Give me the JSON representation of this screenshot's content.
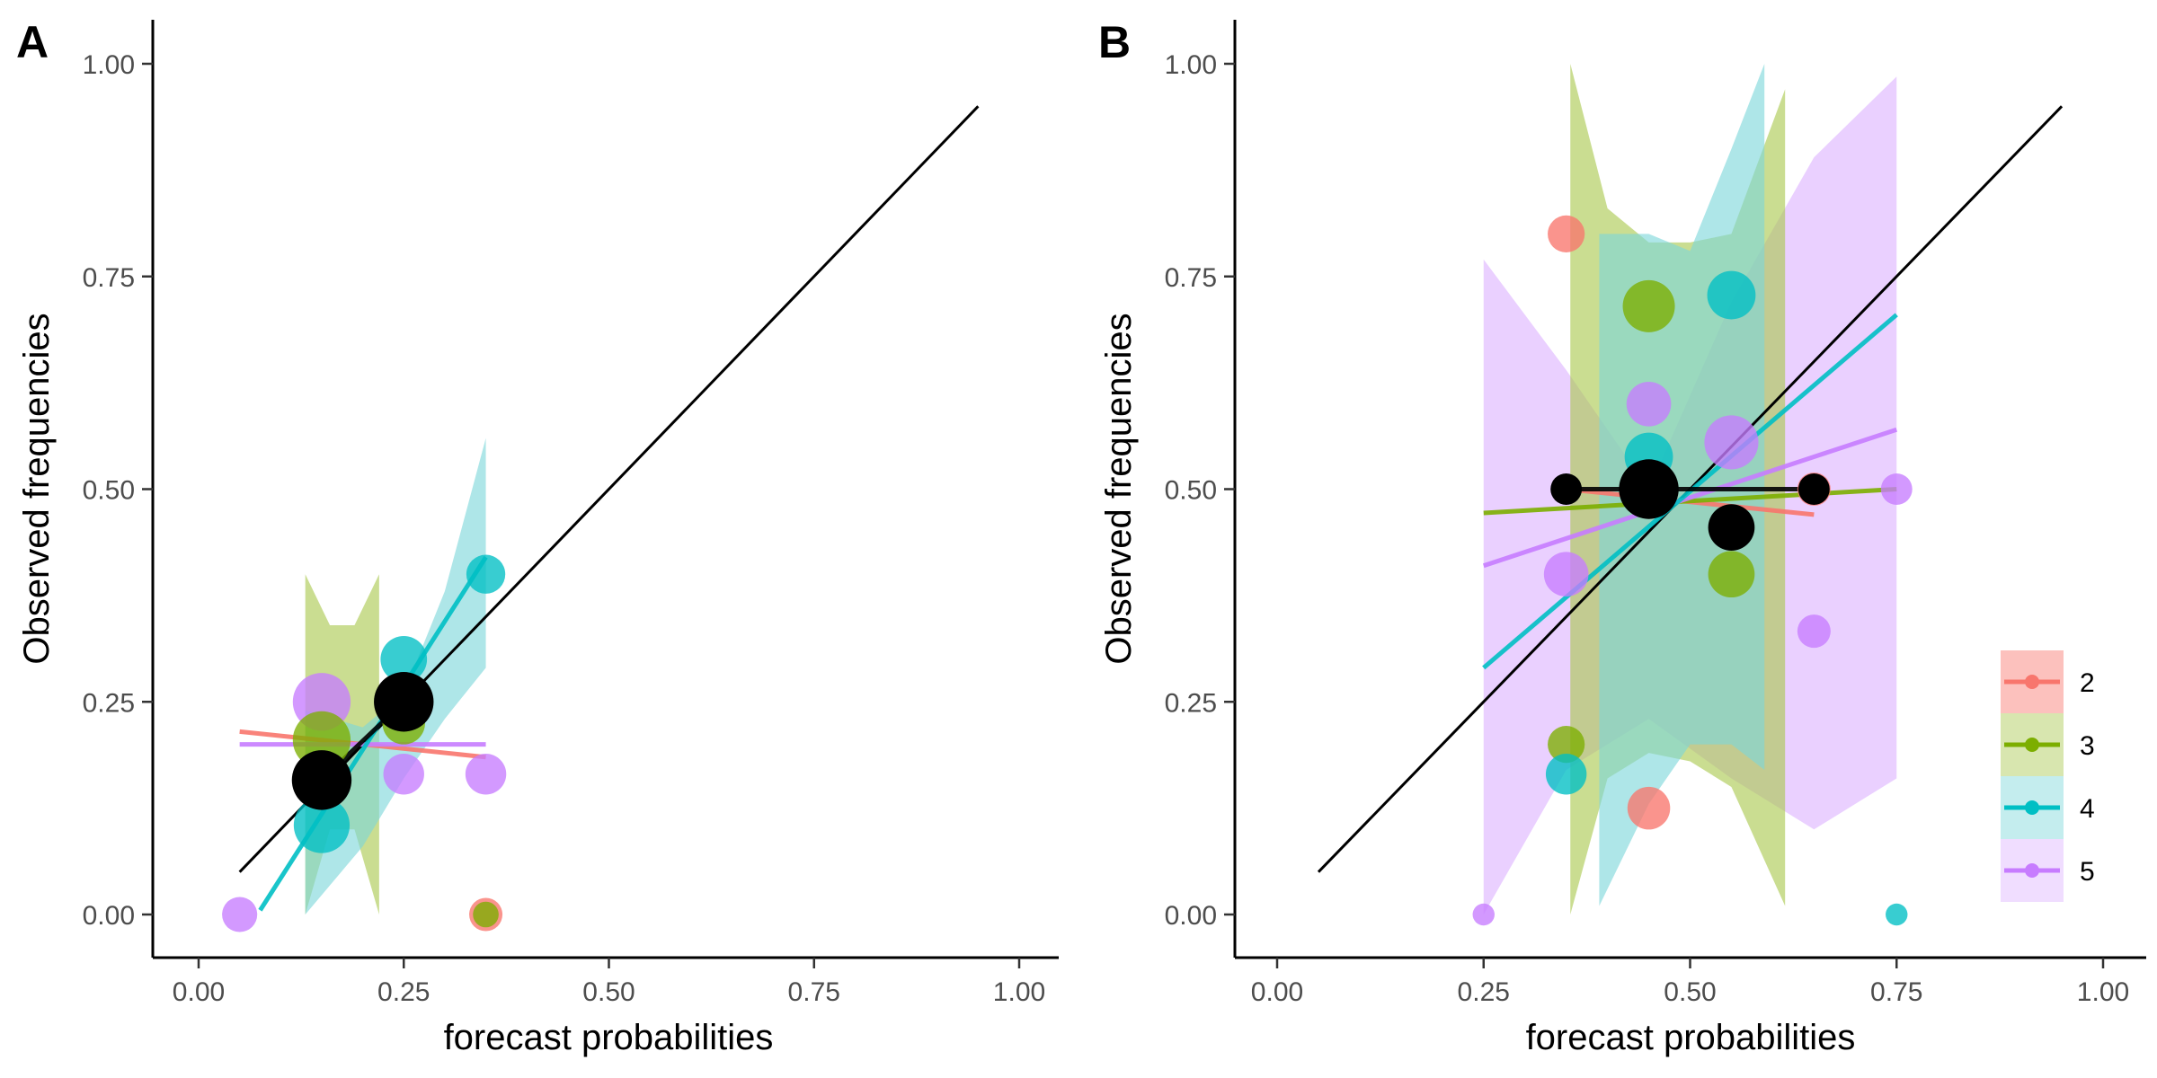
{
  "colors": {
    "2": "#F8766D",
    "3": "#7CAE00",
    "4": "#00BFC4",
    "5": "#C77CFF",
    "overall": "#000000",
    "band3": "#A9C84E",
    "band4": "#7CD6DA",
    "band5": "#DDB3FF"
  },
  "legend": {
    "placement": "bottom-right",
    "entries": [
      {
        "key": "2",
        "label": "2"
      },
      {
        "key": "3",
        "label": "3"
      },
      {
        "key": "4",
        "label": "4"
      },
      {
        "key": "5",
        "label": "5"
      }
    ]
  },
  "chart_data": [
    {
      "type": "scatter",
      "panel_tag": "A",
      "xlabel": "forecast probabilities",
      "ylabel": "Observed frequencies",
      "xlim": [
        0,
        1
      ],
      "ylim": [
        0,
        1
      ],
      "xticks": [
        "0.00",
        "0.25",
        "0.50",
        "0.75",
        "1.00"
      ],
      "yticks": [
        "0.00",
        "0.25",
        "0.50",
        "0.75",
        "1.00"
      ],
      "grid": false,
      "reference_line": {
        "x": [
          0.05,
          0.95
        ],
        "y": [
          0.05,
          0.95
        ]
      },
      "bands": [
        {
          "series": "3",
          "x": [
            0.13,
            0.16,
            0.19,
            0.22
          ],
          "ymin": [
            0.0,
            0.1,
            0.1,
            0.0
          ],
          "ymax": [
            0.4,
            0.34,
            0.34,
            0.4
          ]
        },
        {
          "series": "4",
          "x": [
            0.13,
            0.2,
            0.25,
            0.3,
            0.35
          ],
          "ymin": [
            0.0,
            0.08,
            0.16,
            0.23,
            0.29
          ],
          "ymax": [
            0.24,
            0.22,
            0.26,
            0.38,
            0.56
          ]
        }
      ],
      "lines": [
        {
          "series": "2",
          "x": [
            0.05,
            0.35
          ],
          "y": [
            0.215,
            0.185
          ]
        },
        {
          "series": "5",
          "x": [
            0.05,
            0.35
          ],
          "y": [
            0.2,
            0.2
          ]
        },
        {
          "series": "4",
          "x": [
            0.075,
            0.35
          ],
          "y": [
            0.005,
            0.42
          ]
        },
        {
          "series": "overall",
          "x": [
            0.15,
            0.25
          ],
          "y": [
            0.158,
            0.25
          ]
        }
      ],
      "points": [
        {
          "series": "5",
          "x": 0.05,
          "y": 0.0,
          "size": 0.55
        },
        {
          "series": "2",
          "x": 0.35,
          "y": 0.0,
          "size": 0.5
        },
        {
          "series": "3",
          "x": 0.35,
          "y": 0.0,
          "size": 0.3
        },
        {
          "series": "5",
          "x": 0.15,
          "y": 0.25,
          "size": 1.15
        },
        {
          "series": "3",
          "x": 0.15,
          "y": 0.205,
          "size": 1.15
        },
        {
          "series": "4",
          "x": 0.15,
          "y": 0.105,
          "size": 1.1
        },
        {
          "series": "3",
          "x": 0.25,
          "y": 0.225,
          "size": 0.75
        },
        {
          "series": "4",
          "x": 0.25,
          "y": 0.3,
          "size": 0.85
        },
        {
          "series": "5",
          "x": 0.25,
          "y": 0.165,
          "size": 0.7
        },
        {
          "series": "4",
          "x": 0.35,
          "y": 0.4,
          "size": 0.65
        },
        {
          "series": "5",
          "x": 0.35,
          "y": 0.165,
          "size": 0.7
        },
        {
          "series": "overall",
          "x": 0.15,
          "y": 0.158,
          "size": 1.2
        },
        {
          "series": "overall",
          "x": 0.25,
          "y": 0.25,
          "size": 1.2
        }
      ]
    },
    {
      "type": "scatter",
      "panel_tag": "B",
      "xlabel": "forecast probabilities",
      "ylabel": "Observed frequencies",
      "xlim": [
        0,
        1
      ],
      "ylim": [
        0,
        1
      ],
      "xticks": [
        "0.00",
        "0.25",
        "0.50",
        "0.75",
        "1.00"
      ],
      "yticks": [
        "0.00",
        "0.25",
        "0.50",
        "0.75",
        "1.00"
      ],
      "grid": false,
      "reference_line": {
        "x": [
          0.05,
          0.95
        ],
        "y": [
          0.05,
          0.95
        ]
      },
      "bands": [
        {
          "series": "5",
          "x": [
            0.25,
            0.35,
            0.45,
            0.55,
            0.65,
            0.75
          ],
          "ymin": [
            0.0,
            0.17,
            0.23,
            0.16,
            0.1,
            0.16
          ],
          "ymax": [
            0.77,
            0.64,
            0.5,
            0.72,
            0.89,
            0.985
          ]
        },
        {
          "series": "3",
          "x": [
            0.355,
            0.4,
            0.45,
            0.5,
            0.55,
            0.615
          ],
          "ymin": [
            0.0,
            0.16,
            0.19,
            0.18,
            0.15,
            0.01
          ],
          "ymax": [
            1.0,
            0.83,
            0.79,
            0.79,
            0.8,
            0.97
          ]
        },
        {
          "series": "4",
          "x": [
            0.39,
            0.45,
            0.5,
            0.55,
            0.59
          ],
          "ymin": [
            0.01,
            0.13,
            0.2,
            0.2,
            0.17
          ],
          "ymax": [
            0.8,
            0.8,
            0.78,
            0.9,
            1.0
          ]
        }
      ],
      "lines": [
        {
          "series": "2",
          "x": [
            0.35,
            0.65
          ],
          "y": [
            0.5,
            0.47
          ]
        },
        {
          "series": "3",
          "x": [
            0.25,
            0.75
          ],
          "y": [
            0.472,
            0.5
          ]
        },
        {
          "series": "5",
          "x": [
            0.25,
            0.75
          ],
          "y": [
            0.41,
            0.57
          ]
        },
        {
          "series": "4",
          "x": [
            0.25,
            0.75
          ],
          "y": [
            0.29,
            0.705
          ]
        },
        {
          "series": "overall",
          "x": [
            0.35,
            0.65
          ],
          "y": [
            0.5,
            0.5
          ]
        }
      ],
      "points": [
        {
          "series": "2",
          "x": 0.35,
          "y": 0.8,
          "size": 0.6
        },
        {
          "series": "3",
          "x": 0.45,
          "y": 0.715,
          "size": 1.0
        },
        {
          "series": "4",
          "x": 0.55,
          "y": 0.728,
          "size": 0.9
        },
        {
          "series": "5",
          "x": 0.45,
          "y": 0.6,
          "size": 0.8
        },
        {
          "series": "5",
          "x": 0.55,
          "y": 0.555,
          "size": 1.05
        },
        {
          "series": "4",
          "x": 0.45,
          "y": 0.538,
          "size": 0.9
        },
        {
          "series": "3",
          "x": 0.55,
          "y": 0.4,
          "size": 0.85
        },
        {
          "series": "5",
          "x": 0.35,
          "y": 0.4,
          "size": 0.8
        },
        {
          "series": "3",
          "x": 0.35,
          "y": 0.2,
          "size": 0.6
        },
        {
          "series": "4",
          "x": 0.35,
          "y": 0.165,
          "size": 0.7
        },
        {
          "series": "2",
          "x": 0.45,
          "y": 0.125,
          "size": 0.75
        },
        {
          "series": "5",
          "x": 0.65,
          "y": 0.333,
          "size": 0.5
        },
        {
          "series": "5",
          "x": 0.75,
          "y": 0.5,
          "size": 0.45
        },
        {
          "series": "2",
          "x": 0.65,
          "y": 0.5,
          "size": 0.5
        },
        {
          "series": "5",
          "x": 0.25,
          "y": 0.0,
          "size": 0.2
        },
        {
          "series": "4",
          "x": 0.75,
          "y": 0.0,
          "size": 0.2
        },
        {
          "series": "overall",
          "x": 0.35,
          "y": 0.5,
          "size": 0.45
        },
        {
          "series": "overall",
          "x": 0.45,
          "y": 0.5,
          "size": 1.2
        },
        {
          "series": "overall",
          "x": 0.55,
          "y": 0.455,
          "size": 0.85
        },
        {
          "series": "overall",
          "x": 0.65,
          "y": 0.5,
          "size": 0.45
        }
      ]
    }
  ]
}
